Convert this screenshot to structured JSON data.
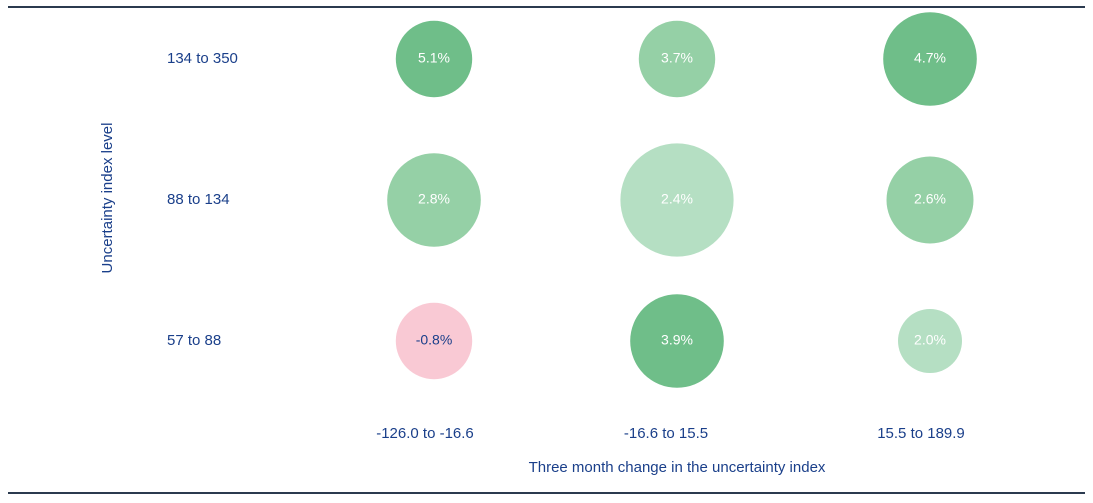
{
  "chart_data": {
    "type": "bubble",
    "title": "",
    "xlabel": "Three month change in the uncertainty index",
    "ylabel": "Uncertainty index level",
    "x_categories": [
      "-126.0 to -16.6",
      "-16.6 to 15.5",
      "15.5 to 189.9"
    ],
    "y_categories": [
      "134 to 350",
      "88 to 134",
      "57 to 88"
    ],
    "grid": false,
    "legend": "none",
    "cells": [
      {
        "row": 0,
        "col": 0,
        "value": 5.1,
        "label": "5.1%",
        "size": 5,
        "color": "#6fbe89",
        "text_color": "#ffffff"
      },
      {
        "row": 0,
        "col": 1,
        "value": 3.7,
        "label": "3.7%",
        "size": 5,
        "color": "#95d0a6",
        "text_color": "#ffffff"
      },
      {
        "row": 0,
        "col": 2,
        "value": 4.7,
        "label": "4.7%",
        "size": 7.5,
        "color": "#6fbe89",
        "text_color": "#ffffff"
      },
      {
        "row": 1,
        "col": 0,
        "value": 2.8,
        "label": "2.8%",
        "size": 7.5,
        "color": "#95d0a6",
        "text_color": "#ffffff"
      },
      {
        "row": 1,
        "col": 1,
        "value": 2.4,
        "label": "2.4%",
        "size": 11,
        "color": "#b5dfc3",
        "text_color": "#ffffff"
      },
      {
        "row": 1,
        "col": 2,
        "value": 2.6,
        "label": "2.6%",
        "size": 6.5,
        "color": "#95d0a6",
        "text_color": "#ffffff"
      },
      {
        "row": 2,
        "col": 0,
        "value": -0.8,
        "label": "-0.8%",
        "size": 5,
        "color": "#f9c9d4",
        "text_color": "#1a3f8a"
      },
      {
        "row": 2,
        "col": 1,
        "value": 3.9,
        "label": "3.9%",
        "size": 7.5,
        "color": "#6fbe89",
        "text_color": "#ffffff"
      },
      {
        "row": 2,
        "col": 2,
        "value": 2.0,
        "label": "2.0%",
        "size": 3.5,
        "color": "#b5dfc3",
        "text_color": "#ffffff"
      }
    ]
  }
}
